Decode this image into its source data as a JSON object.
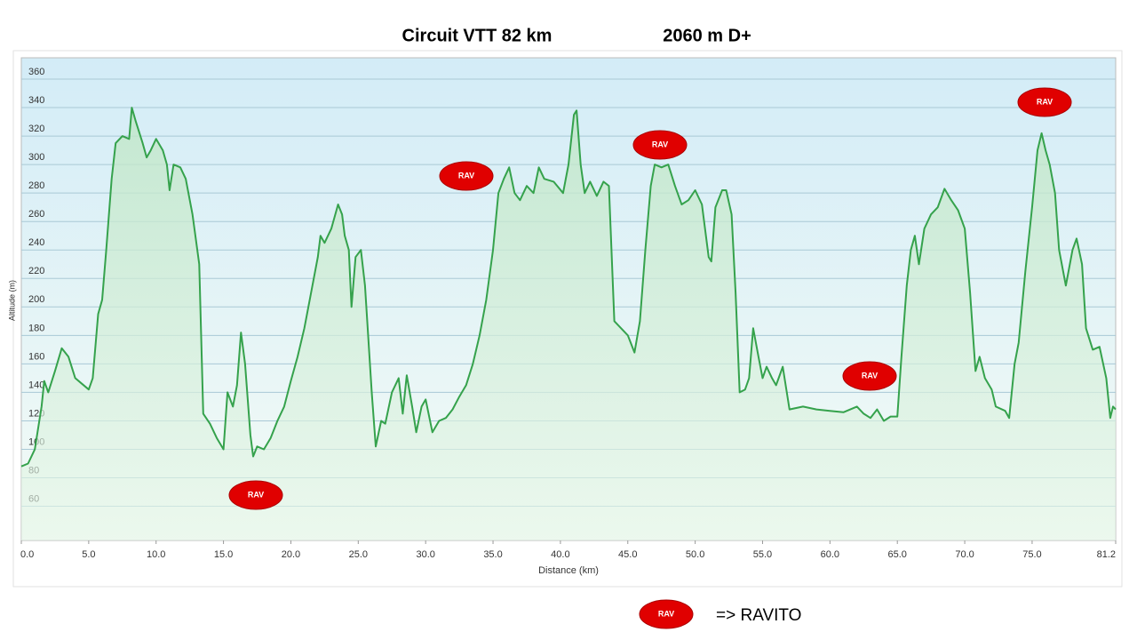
{
  "chart_data": {
    "type": "area",
    "title": "Circuit VTT 82 km",
    "subtitle": "2060 m D+",
    "x_label": "Distance  (km)",
    "y_label": "Altitude (m)",
    "color": "#35a24c",
    "xlim": [
      0,
      81.2
    ],
    "ylim": [
      36,
      375
    ],
    "xticks": [
      {
        "value": 0,
        "label": "0.0"
      },
      {
        "value": 5,
        "label": "5.0"
      },
      {
        "value": 10,
        "label": "10.0"
      },
      {
        "value": 15,
        "label": "15.0"
      },
      {
        "value": 20,
        "label": "20.0"
      },
      {
        "value": 25,
        "label": "25.0"
      },
      {
        "value": 30,
        "label": "30.0"
      },
      {
        "value": 35,
        "label": "35.0"
      },
      {
        "value": 40,
        "label": "40.0"
      },
      {
        "value": 45,
        "label": "45.0"
      },
      {
        "value": 50,
        "label": "50.0"
      },
      {
        "value": 55,
        "label": "55.0"
      },
      {
        "value": 60,
        "label": "60.0"
      },
      {
        "value": 65,
        "label": "65.0"
      },
      {
        "value": 70,
        "label": "70.0"
      },
      {
        "value": 75,
        "label": "75.0"
      },
      81.2
    ],
    "yticks": [
      60,
      80,
      100,
      120,
      140,
      160,
      180,
      200,
      220,
      240,
      260,
      280,
      300,
      320,
      340,
      360
    ],
    "grid": true,
    "x": [
      0,
      0.5,
      1,
      1.5,
      1.7,
      2,
      2.5,
      3,
      3.5,
      4,
      4.5,
      5,
      5.3,
      5.7,
      6,
      6.3,
      6.7,
      7,
      7.5,
      8,
      8.2,
      8.5,
      9,
      9.3,
      9.6,
      10,
      10.5,
      10.8,
      11,
      11.3,
      11.8,
      12.2,
      12.7,
      13.2,
      13.5,
      14,
      14.5,
      15,
      15.3,
      15.7,
      16,
      16.3,
      16.6,
      17,
      17.2,
      17.5,
      18,
      18.5,
      19,
      19.5,
      20,
      20.5,
      21,
      21.5,
      22,
      22.2,
      22.5,
      23,
      23.5,
      23.8,
      24,
      24.3,
      24.5,
      24.8,
      25.2,
      25.5,
      26,
      26.3,
      26.7,
      27,
      27.5,
      28,
      28.3,
      28.6,
      29,
      29.3,
      29.7,
      30,
      30.5,
      31,
      31.5,
      32,
      32.5,
      33,
      33.5,
      34,
      34.5,
      35,
      35.4,
      35.8,
      36.2,
      36.6,
      37,
      37.5,
      38,
      38.4,
      38.8,
      39.5,
      40.2,
      40.6,
      41,
      41.2,
      41.5,
      41.8,
      42.2,
      42.7,
      43.2,
      43.6,
      44,
      44.5,
      45,
      45.5,
      45.9,
      46.3,
      46.7,
      47,
      47.5,
      48,
      48.5,
      49,
      49.5,
      50,
      50.5,
      51,
      51.2,
      51.5,
      52,
      52.3,
      52.7,
      53,
      53.3,
      53.7,
      54,
      54.3,
      54.7,
      55,
      55.3,
      55.7,
      56,
      56.5,
      57,
      58,
      59,
      60,
      61,
      62,
      62.5,
      63,
      63.5,
      64,
      64.5,
      65,
      65.3,
      65.7,
      66,
      66.3,
      66.6,
      67,
      67.5,
      68,
      68.5,
      69,
      69.5,
      70,
      70.4,
      70.8,
      71.1,
      71.5,
      72,
      72.3,
      73,
      73.3,
      73.7,
      74,
      74.5,
      75,
      75.4,
      75.7,
      76,
      76.3,
      76.7,
      77,
      77.5,
      78,
      78.3,
      78.7,
      79,
      79.5,
      80,
      80.5,
      80.8,
      81,
      81.2
    ],
    "values": [
      88,
      90,
      100,
      130,
      148,
      140,
      155,
      171,
      165,
      150,
      146,
      142,
      150,
      195,
      205,
      240,
      290,
      315,
      320,
      318,
      340,
      330,
      315,
      305,
      310,
      318,
      310,
      300,
      282,
      300,
      298,
      290,
      265,
      230,
      125,
      118,
      108,
      100,
      140,
      130,
      145,
      182,
      160,
      110,
      95,
      102,
      100,
      108,
      120,
      130,
      148,
      165,
      185,
      210,
      235,
      250,
      245,
      255,
      272,
      265,
      250,
      240,
      200,
      235,
      240,
      215,
      140,
      102,
      120,
      118,
      140,
      150,
      125,
      152,
      130,
      112,
      130,
      135,
      112,
      120,
      122,
      128,
      137,
      145,
      160,
      180,
      205,
      240,
      280,
      290,
      298,
      280,
      275,
      285,
      280,
      298,
      290,
      288,
      280,
      300,
      335,
      338,
      300,
      280,
      288,
      278,
      288,
      285,
      190,
      185,
      180,
      168,
      190,
      240,
      285,
      300,
      298,
      300,
      285,
      272,
      275,
      282,
      272,
      235,
      232,
      270,
      282,
      282,
      265,
      210,
      140,
      142,
      150,
      185,
      165,
      150,
      158,
      150,
      145,
      158,
      128,
      130,
      128,
      127,
      126,
      130,
      125,
      122,
      128,
      120,
      123,
      123,
      165,
      215,
      240,
      250,
      230,
      255,
      265,
      270,
      283,
      275,
      268,
      255,
      210,
      155,
      165,
      150,
      142,
      130,
      127,
      122,
      160,
      175,
      225,
      270,
      310,
      322,
      310,
      300,
      280,
      240,
      215,
      240,
      248,
      230,
      185,
      170,
      172,
      150,
      122,
      130,
      128
    ],
    "annotations": [
      "RAV",
      "RAV",
      "RAV",
      "RAV",
      "RAV"
    ],
    "legend": {
      "marker": "RAV",
      "label": "=> RAVITO"
    }
  }
}
